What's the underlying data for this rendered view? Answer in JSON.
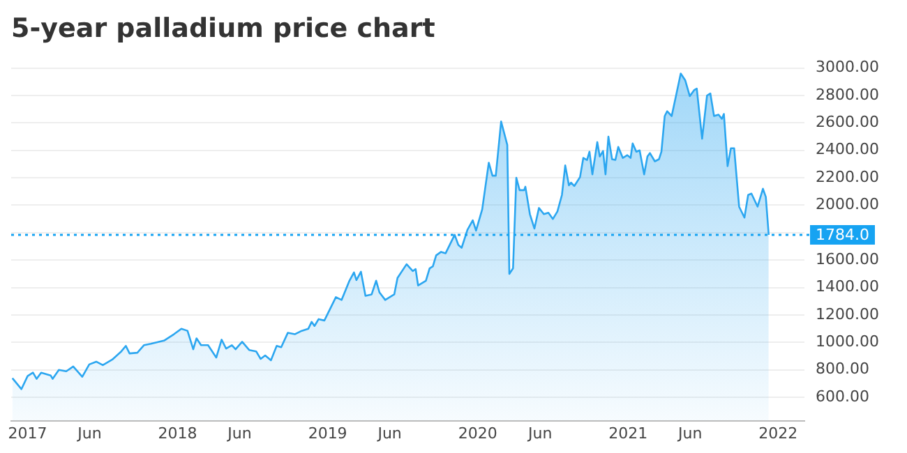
{
  "chart_data": {
    "type": "area",
    "title": "5-year palladium price chart",
    "series": [
      {
        "color": "#2ba6f0",
        "x": [
          "2016-11-25",
          "2016-12-17",
          "2017-01-01",
          "2017-01-14",
          "2017-01-23",
          "2017-02-03",
          "2017-02-26",
          "2017-03-03",
          "2017-03-18",
          "2017-04-05",
          "2017-04-22",
          "2017-05-14",
          "2017-05-31",
          "2017-06-17",
          "2017-07-03",
          "2017-07-26",
          "2017-08-17",
          "2017-08-28",
          "2017-09-06",
          "2017-09-25",
          "2017-10-11",
          "2017-10-28",
          "2017-11-30",
          "2017-12-23",
          "2018-01-10",
          "2018-01-25",
          "2018-02-08",
          "2018-02-16",
          "2018-02-27",
          "2018-03-16",
          "2018-04-05",
          "2018-04-18",
          "2018-04-29",
          "2018-05-13",
          "2018-05-22",
          "2018-06-07",
          "2018-06-24",
          "2018-07-11",
          "2018-07-22",
          "2018-08-02",
          "2018-08-16",
          "2018-08-30",
          "2018-09-10",
          "2018-09-26",
          "2018-10-13",
          "2018-10-30",
          "2018-11-15",
          "2018-11-23",
          "2018-11-30",
          "2018-12-10",
          "2018-12-24",
          "2019-01-21",
          "2019-02-04",
          "2019-02-23",
          "2019-03-06",
          "2019-03-12",
          "2019-03-23",
          "2019-04-03",
          "2019-04-18",
          "2019-04-29",
          "2019-05-07",
          "2019-05-21",
          "2019-06-12",
          "2019-06-20",
          "2019-07-12",
          "2019-07-27",
          "2019-08-03",
          "2019-08-09",
          "2019-08-28",
          "2019-09-06",
          "2019-09-14",
          "2019-09-22",
          "2019-10-04",
          "2019-10-15",
          "2019-11-06",
          "2019-11-15",
          "2019-11-23",
          "2019-12-07",
          "2019-12-20",
          "2019-12-28",
          "2020-01-12",
          "2020-01-28",
          "2020-02-06",
          "2020-02-14",
          "2020-02-27",
          "2020-03-13",
          "2020-03-18",
          "2020-03-27",
          "2020-04-04",
          "2020-04-12",
          "2020-04-23",
          "2020-04-26",
          "2020-05-07",
          "2020-05-18",
          "2020-05-29",
          "2020-06-10",
          "2020-06-21",
          "2020-07-02",
          "2020-07-13",
          "2020-07-24",
          "2020-08-01",
          "2020-08-10",
          "2020-08-15",
          "2020-08-23",
          "2020-09-06",
          "2020-09-14",
          "2020-09-23",
          "2020-09-29",
          "2020-10-06",
          "2020-10-18",
          "2020-10-24",
          "2020-11-01",
          "2020-11-07",
          "2020-11-14",
          "2020-11-23",
          "2020-12-01",
          "2020-12-08",
          "2020-12-19",
          "2020-12-30",
          "2021-01-07",
          "2021-01-12",
          "2021-01-21",
          "2021-01-29",
          "2021-02-09",
          "2021-02-17",
          "2021-02-23",
          "2021-03-07",
          "2021-03-17",
          "2021-03-23",
          "2021-03-31",
          "2021-04-06",
          "2021-04-17",
          "2021-04-28",
          "2021-05-09",
          "2021-05-20",
          "2021-05-31",
          "2021-06-11",
          "2021-06-17",
          "2021-06-30",
          "2021-07-12",
          "2021-07-20",
          "2021-07-29",
          "2021-08-09",
          "2021-08-17",
          "2021-08-22",
          "2021-08-31",
          "2021-09-08",
          "2021-09-16",
          "2021-09-28",
          "2021-10-11",
          "2021-10-20",
          "2021-10-28",
          "2021-11-12",
          "2021-11-25",
          "2021-12-02",
          "2021-12-09"
        ],
        "values": [
          740,
          660,
          755,
          780,
          735,
          780,
          760,
          735,
          800,
          790,
          825,
          750,
          840,
          860,
          835,
          875,
          935,
          975,
          920,
          925,
          980,
          990,
          1015,
          1060,
          1100,
          1085,
          950,
          1030,
          980,
          980,
          890,
          1020,
          955,
          980,
          950,
          1005,
          945,
          935,
          880,
          905,
          870,
          975,
          965,
          1070,
          1060,
          1085,
          1100,
          1150,
          1120,
          1170,
          1160,
          1330,
          1310,
          1450,
          1510,
          1455,
          1515,
          1340,
          1350,
          1450,
          1365,
          1310,
          1350,
          1470,
          1570,
          1520,
          1535,
          1415,
          1450,
          1540,
          1555,
          1635,
          1660,
          1650,
          1785,
          1710,
          1690,
          1820,
          1890,
          1815,
          1970,
          2310,
          2215,
          2215,
          2610,
          2440,
          1500,
          1540,
          2200,
          2110,
          2110,
          2135,
          1935,
          1830,
          1980,
          1935,
          1945,
          1900,
          1955,
          2075,
          2290,
          2145,
          2165,
          2140,
          2205,
          2345,
          2330,
          2390,
          2225,
          2460,
          2355,
          2395,
          2225,
          2500,
          2335,
          2330,
          2425,
          2345,
          2365,
          2345,
          2450,
          2390,
          2400,
          2225,
          2355,
          2380,
          2320,
          2335,
          2390,
          2650,
          2685,
          2650,
          2805,
          2960,
          2910,
          2795,
          2840,
          2850,
          2485,
          2800,
          2815,
          2650,
          2660,
          2630,
          2665,
          2285,
          2415,
          2415,
          1990,
          1910,
          2075,
          2085,
          1990,
          2120,
          2060,
          1784
        ]
      }
    ],
    "xlim": [
      "2016-11-22",
      "2022-03-06"
    ],
    "xticks": [
      {
        "value": "2017-01-01",
        "label": "2017"
      },
      {
        "value": "2017-06-01",
        "label": "Jun"
      },
      {
        "value": "2018-01-01",
        "label": "2018"
      },
      {
        "value": "2018-06-01",
        "label": "Jun"
      },
      {
        "value": "2019-01-01",
        "label": "2019"
      },
      {
        "value": "2019-06-01",
        "label": "Jun"
      },
      {
        "value": "2020-01-01",
        "label": "2020"
      },
      {
        "value": "2020-06-01",
        "label": "Jun"
      },
      {
        "value": "2021-01-01",
        "label": "2021"
      },
      {
        "value": "2021-06-01",
        "label": "Jun"
      },
      {
        "value": "2022-01-01",
        "label": "2022"
      }
    ],
    "ylim": [
      430,
      3000
    ],
    "yticks": [
      {
        "value": 600,
        "label": "600.00"
      },
      {
        "value": 800,
        "label": "800.00"
      },
      {
        "value": 1000,
        "label": "1000.00"
      },
      {
        "value": 1200,
        "label": "1200.00"
      },
      {
        "value": 1400,
        "label": "1400.00"
      },
      {
        "value": 1600,
        "label": "1600.00"
      },
      {
        "value": 1800,
        "label": null
      },
      {
        "value": 2000,
        "label": "2000.00"
      },
      {
        "value": 2200,
        "label": "2200.00"
      },
      {
        "value": 2400,
        "label": "2400.00"
      },
      {
        "value": 2600,
        "label": "2600.00"
      },
      {
        "value": 2800,
        "label": "2800.00"
      },
      {
        "value": 3000,
        "label": "3000.00"
      }
    ],
    "ref_lines": [
      {
        "axis": "y",
        "value": 1784,
        "label": "1784.0",
        "color": "#16a3f2",
        "line_style": "dotted"
      }
    ],
    "grid": "y",
    "legend": false,
    "marker": "none",
    "line_style": "solid"
  }
}
